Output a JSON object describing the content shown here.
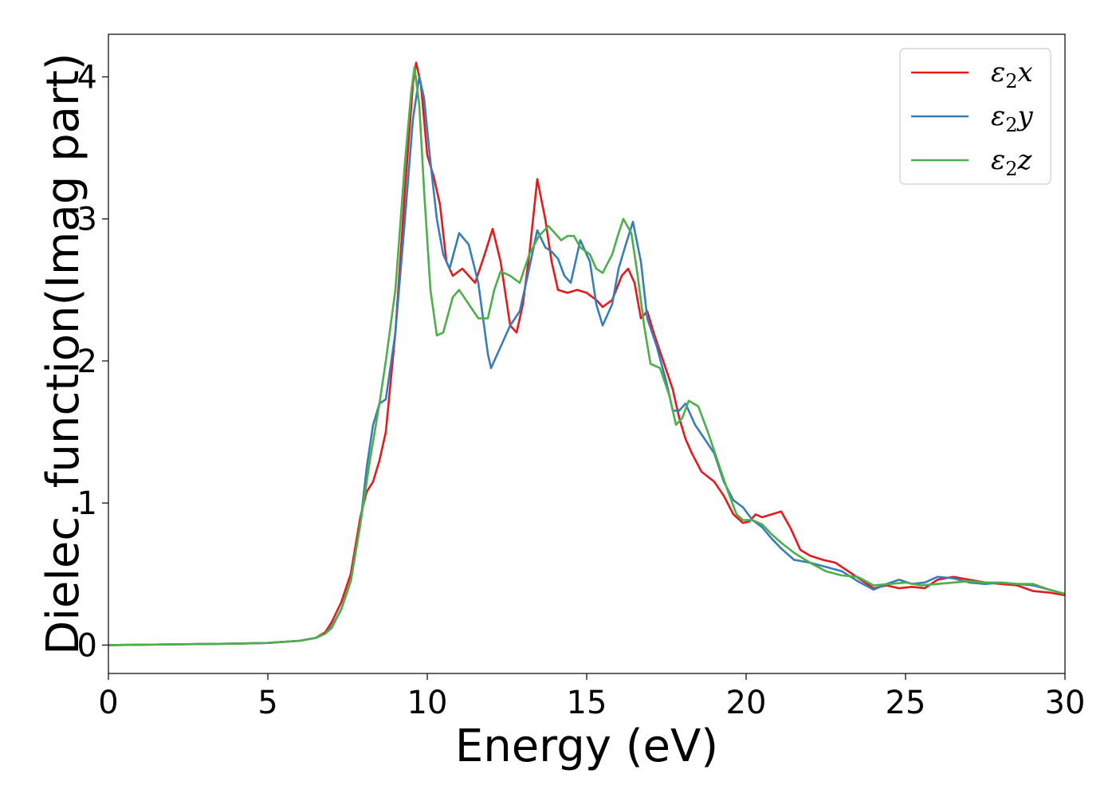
{
  "chart_data": {
    "type": "line",
    "title": "",
    "xlabel": "Energy (eV)",
    "ylabel": "Dielec. function(Imag part)",
    "xlim": [
      0,
      30
    ],
    "ylim": [
      -0.2,
      4.3
    ],
    "xticks": [
      0,
      5,
      10,
      15,
      20,
      25,
      30
    ],
    "xtick_labels": [
      "0",
      "5",
      "10",
      "15",
      "20",
      "25",
      "30"
    ],
    "yticks": [
      0,
      1,
      2,
      3,
      4
    ],
    "ytick_labels": [
      "0",
      "1",
      "2",
      "3",
      "4"
    ],
    "grid": false,
    "legend_position": "top-right",
    "series": [
      {
        "name": "ε₂x",
        "legend_base": "ε",
        "legend_sub": "2",
        "legend_suffix": "x",
        "color": "#e41a1c",
        "points": [
          [
            0,
            0.0
          ],
          [
            2,
            0.005
          ],
          [
            4,
            0.01
          ],
          [
            5,
            0.015
          ],
          [
            6,
            0.03
          ],
          [
            6.5,
            0.05
          ],
          [
            6.8,
            0.09
          ],
          [
            7.0,
            0.16
          ],
          [
            7.3,
            0.3
          ],
          [
            7.6,
            0.5
          ],
          [
            7.9,
            0.9
          ],
          [
            8.1,
            1.08
          ],
          [
            8.3,
            1.15
          ],
          [
            8.5,
            1.3
          ],
          [
            8.7,
            1.5
          ],
          [
            9.0,
            2.2
          ],
          [
            9.3,
            3.2
          ],
          [
            9.55,
            3.95
          ],
          [
            9.65,
            4.1
          ],
          [
            9.8,
            3.95
          ],
          [
            10.0,
            3.45
          ],
          [
            10.2,
            3.3
          ],
          [
            10.4,
            3.1
          ],
          [
            10.6,
            2.7
          ],
          [
            10.8,
            2.6
          ],
          [
            11.1,
            2.65
          ],
          [
            11.3,
            2.6
          ],
          [
            11.5,
            2.55
          ],
          [
            11.8,
            2.75
          ],
          [
            12.05,
            2.93
          ],
          [
            12.3,
            2.7
          ],
          [
            12.6,
            2.25
          ],
          [
            12.8,
            2.2
          ],
          [
            13.0,
            2.4
          ],
          [
            13.2,
            2.75
          ],
          [
            13.45,
            3.28
          ],
          [
            13.7,
            3.0
          ],
          [
            13.9,
            2.7
          ],
          [
            14.1,
            2.5
          ],
          [
            14.4,
            2.48
          ],
          [
            14.7,
            2.5
          ],
          [
            15.0,
            2.48
          ],
          [
            15.3,
            2.43
          ],
          [
            15.5,
            2.38
          ],
          [
            15.8,
            2.43
          ],
          [
            16.1,
            2.6
          ],
          [
            16.3,
            2.65
          ],
          [
            16.5,
            2.55
          ],
          [
            16.7,
            2.3
          ],
          [
            16.9,
            2.35
          ],
          [
            17.1,
            2.2
          ],
          [
            17.4,
            2.0
          ],
          [
            17.7,
            1.8
          ],
          [
            17.9,
            1.6
          ],
          [
            18.1,
            1.45
          ],
          [
            18.3,
            1.35
          ],
          [
            18.6,
            1.22
          ],
          [
            19.0,
            1.15
          ],
          [
            19.3,
            1.05
          ],
          [
            19.6,
            0.92
          ],
          [
            19.9,
            0.86
          ],
          [
            20.1,
            0.87
          ],
          [
            20.3,
            0.92
          ],
          [
            20.5,
            0.9
          ],
          [
            20.8,
            0.92
          ],
          [
            21.1,
            0.94
          ],
          [
            21.4,
            0.82
          ],
          [
            21.7,
            0.67
          ],
          [
            22.0,
            0.63
          ],
          [
            22.4,
            0.6
          ],
          [
            22.8,
            0.58
          ],
          [
            23.2,
            0.52
          ],
          [
            23.6,
            0.46
          ],
          [
            24.0,
            0.4
          ],
          [
            24.4,
            0.42
          ],
          [
            24.8,
            0.4
          ],
          [
            25.2,
            0.41
          ],
          [
            25.6,
            0.4
          ],
          [
            26.0,
            0.46
          ],
          [
            26.5,
            0.48
          ],
          [
            27.0,
            0.46
          ],
          [
            27.5,
            0.44
          ],
          [
            28.0,
            0.43
          ],
          [
            28.5,
            0.42
          ],
          [
            29.0,
            0.38
          ],
          [
            29.5,
            0.37
          ],
          [
            30.0,
            0.35
          ]
        ]
      },
      {
        "name": "ε₂y",
        "legend_base": "ε",
        "legend_sub": "2",
        "legend_suffix": "y",
        "color": "#377eb8",
        "points": [
          [
            0,
            0.0
          ],
          [
            2,
            0.005
          ],
          [
            4,
            0.01
          ],
          [
            5,
            0.015
          ],
          [
            6,
            0.03
          ],
          [
            6.5,
            0.05
          ],
          [
            6.8,
            0.08
          ],
          [
            7.0,
            0.13
          ],
          [
            7.3,
            0.25
          ],
          [
            7.6,
            0.45
          ],
          [
            7.9,
            0.85
          ],
          [
            8.1,
            1.25
          ],
          [
            8.3,
            1.55
          ],
          [
            8.5,
            1.7
          ],
          [
            8.7,
            1.73
          ],
          [
            9.0,
            2.2
          ],
          [
            9.3,
            3.0
          ],
          [
            9.55,
            3.7
          ],
          [
            9.75,
            4.0
          ],
          [
            9.9,
            3.85
          ],
          [
            10.1,
            3.4
          ],
          [
            10.3,
            3.0
          ],
          [
            10.5,
            2.75
          ],
          [
            10.7,
            2.65
          ],
          [
            11.0,
            2.9
          ],
          [
            11.3,
            2.82
          ],
          [
            11.6,
            2.55
          ],
          [
            11.9,
            2.05
          ],
          [
            12.0,
            1.95
          ],
          [
            12.3,
            2.1
          ],
          [
            12.6,
            2.25
          ],
          [
            12.9,
            2.35
          ],
          [
            13.1,
            2.55
          ],
          [
            13.45,
            2.92
          ],
          [
            13.7,
            2.8
          ],
          [
            13.9,
            2.77
          ],
          [
            14.1,
            2.72
          ],
          [
            14.3,
            2.6
          ],
          [
            14.5,
            2.55
          ],
          [
            14.8,
            2.85
          ],
          [
            15.1,
            2.7
          ],
          [
            15.3,
            2.4
          ],
          [
            15.5,
            2.25
          ],
          [
            15.8,
            2.4
          ],
          [
            16.0,
            2.65
          ],
          [
            16.2,
            2.8
          ],
          [
            16.45,
            2.98
          ],
          [
            16.7,
            2.7
          ],
          [
            16.9,
            2.3
          ],
          [
            17.2,
            2.1
          ],
          [
            17.5,
            1.85
          ],
          [
            17.7,
            1.65
          ],
          [
            17.9,
            1.65
          ],
          [
            18.1,
            1.7
          ],
          [
            18.4,
            1.55
          ],
          [
            18.7,
            1.45
          ],
          [
            19.0,
            1.35
          ],
          [
            19.3,
            1.15
          ],
          [
            19.6,
            1.02
          ],
          [
            19.9,
            0.97
          ],
          [
            20.2,
            0.88
          ],
          [
            20.5,
            0.83
          ],
          [
            20.8,
            0.75
          ],
          [
            21.1,
            0.68
          ],
          [
            21.5,
            0.6
          ],
          [
            22.0,
            0.58
          ],
          [
            22.5,
            0.55
          ],
          [
            23.0,
            0.52
          ],
          [
            23.5,
            0.45
          ],
          [
            24.0,
            0.39
          ],
          [
            24.4,
            0.43
          ],
          [
            24.8,
            0.46
          ],
          [
            25.2,
            0.43
          ],
          [
            25.6,
            0.44
          ],
          [
            26.0,
            0.48
          ],
          [
            26.5,
            0.47
          ],
          [
            27.0,
            0.44
          ],
          [
            27.5,
            0.43
          ],
          [
            28.0,
            0.44
          ],
          [
            28.5,
            0.43
          ],
          [
            29.0,
            0.42
          ],
          [
            29.5,
            0.39
          ],
          [
            30.0,
            0.36
          ]
        ]
      },
      {
        "name": "ε₂z",
        "legend_base": "ε",
        "legend_sub": "2",
        "legend_suffix": "z",
        "color": "#4daf4a",
        "points": [
          [
            0,
            0.0
          ],
          [
            2,
            0.005
          ],
          [
            4,
            0.01
          ],
          [
            5,
            0.015
          ],
          [
            6,
            0.03
          ],
          [
            6.5,
            0.05
          ],
          [
            6.8,
            0.08
          ],
          [
            7.0,
            0.12
          ],
          [
            7.3,
            0.25
          ],
          [
            7.6,
            0.45
          ],
          [
            7.9,
            0.85
          ],
          [
            8.2,
            1.3
          ],
          [
            8.5,
            1.7
          ],
          [
            8.7,
            2.0
          ],
          [
            9.0,
            2.5
          ],
          [
            9.3,
            3.4
          ],
          [
            9.5,
            3.9
          ],
          [
            9.6,
            4.07
          ],
          [
            9.75,
            3.8
          ],
          [
            9.9,
            3.2
          ],
          [
            10.1,
            2.5
          ],
          [
            10.3,
            2.18
          ],
          [
            10.5,
            2.2
          ],
          [
            10.8,
            2.45
          ],
          [
            11.0,
            2.5
          ],
          [
            11.3,
            2.4
          ],
          [
            11.6,
            2.3
          ],
          [
            11.9,
            2.3
          ],
          [
            12.1,
            2.5
          ],
          [
            12.3,
            2.63
          ],
          [
            12.6,
            2.6
          ],
          [
            12.9,
            2.55
          ],
          [
            13.2,
            2.75
          ],
          [
            13.5,
            2.88
          ],
          [
            13.8,
            2.95
          ],
          [
            14.0,
            2.9
          ],
          [
            14.2,
            2.85
          ],
          [
            14.4,
            2.88
          ],
          [
            14.6,
            2.88
          ],
          [
            14.8,
            2.8
          ],
          [
            15.1,
            2.75
          ],
          [
            15.3,
            2.65
          ],
          [
            15.5,
            2.62
          ],
          [
            15.8,
            2.75
          ],
          [
            16.0,
            2.9
          ],
          [
            16.15,
            3.0
          ],
          [
            16.4,
            2.9
          ],
          [
            16.6,
            2.6
          ],
          [
            16.8,
            2.25
          ],
          [
            17.0,
            1.98
          ],
          [
            17.3,
            1.95
          ],
          [
            17.6,
            1.75
          ],
          [
            17.8,
            1.55
          ],
          [
            18.0,
            1.6
          ],
          [
            18.2,
            1.72
          ],
          [
            18.5,
            1.68
          ],
          [
            18.8,
            1.5
          ],
          [
            19.1,
            1.3
          ],
          [
            19.4,
            1.1
          ],
          [
            19.7,
            0.92
          ],
          [
            19.9,
            0.88
          ],
          [
            20.2,
            0.88
          ],
          [
            20.5,
            0.85
          ],
          [
            20.8,
            0.78
          ],
          [
            21.1,
            0.72
          ],
          [
            21.5,
            0.65
          ],
          [
            22.0,
            0.58
          ],
          [
            22.5,
            0.52
          ],
          [
            23.0,
            0.49
          ],
          [
            23.5,
            0.48
          ],
          [
            24.0,
            0.42
          ],
          [
            24.5,
            0.43
          ],
          [
            25.0,
            0.44
          ],
          [
            25.5,
            0.42
          ],
          [
            26.0,
            0.43
          ],
          [
            26.5,
            0.44
          ],
          [
            27.0,
            0.45
          ],
          [
            27.5,
            0.44
          ],
          [
            28.0,
            0.44
          ],
          [
            28.5,
            0.43
          ],
          [
            29.0,
            0.43
          ],
          [
            29.5,
            0.39
          ],
          [
            30.0,
            0.36
          ]
        ]
      }
    ]
  }
}
